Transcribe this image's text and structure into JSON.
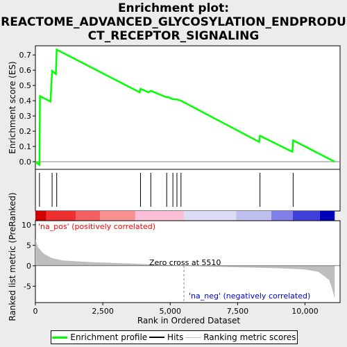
{
  "title_lines": [
    "Enrichment plot:",
    "REACTOME_ADVANCED_GLYCOSYLATION_ENDPRODU",
    "CT_RECEPTOR_SIGNALING"
  ],
  "colors": {
    "es_line": "#00ff00",
    "hit": "#000000",
    "metric_fill": "#bebebe",
    "zero_line": "#808080",
    "pos_label": "#ff0000",
    "neg_label": "#0000cc",
    "heat_red": [
      "#d40000",
      "#f03030",
      "#f46060",
      "#f89090",
      "#fbbfd8"
    ],
    "heat_blue": [
      "#dcdcf4",
      "#c0c0f0",
      "#8080e8",
      "#4040d8",
      "#0000b8"
    ]
  },
  "chart_data": [
    {
      "type": "line",
      "name": "enrichment-profile",
      "ylabel": "Enrichment score (ES)",
      "xlim": [
        0,
        11300
      ],
      "ylim": [
        -0.05,
        0.76
      ],
      "yticks": [
        "0.0",
        "0.1",
        "0.2",
        "0.3",
        "0.4",
        "0.5",
        "0.6",
        "0.7"
      ],
      "ytick_values": [
        0,
        0.1,
        0.2,
        0.3,
        0.4,
        0.5,
        0.6,
        0.7
      ],
      "points": [
        [
          0,
          0
        ],
        [
          150,
          -0.02
        ],
        [
          170,
          0.43
        ],
        [
          560,
          0.395
        ],
        [
          620,
          0.595
        ],
        [
          760,
          0.575
        ],
        [
          790,
          0.735
        ],
        [
          3870,
          0.455
        ],
        [
          3900,
          0.478
        ],
        [
          4200,
          0.455
        ],
        [
          4280,
          0.465
        ],
        [
          4870,
          0.422
        ],
        [
          4900,
          0.425
        ],
        [
          5100,
          0.41
        ],
        [
          5250,
          0.408
        ],
        [
          5400,
          0.4
        ],
        [
          8300,
          0.13
        ],
        [
          8330,
          0.17
        ],
        [
          9530,
          0.065
        ],
        [
          9560,
          0.14
        ],
        [
          11100,
          0.0
        ]
      ],
      "hits": [
        150,
        620,
        790,
        3900,
        4280,
        4870,
        5100,
        5250,
        5400,
        8330,
        9560
      ]
    },
    {
      "type": "area",
      "name": "ranked-list-metric",
      "ylabel": "Ranked list metric (PreRanked)",
      "xlabel": "Rank in Ordered Dataset",
      "xlim": [
        0,
        11300
      ],
      "ylim": [
        -9,
        11
      ],
      "yticks": [
        "-5",
        "0",
        "5",
        "10"
      ],
      "ytick_values": [
        -5,
        0,
        5,
        10
      ],
      "xticks": [
        "0",
        "2,500",
        "5,000",
        "7,500",
        "10,000"
      ],
      "xtick_values": [
        0,
        2500,
        5000,
        7500,
        10000
      ],
      "zero_cross": 5510,
      "zero_cross_label": "Zero cross at 5510",
      "pos_label": "'na_pos' (positively correlated)",
      "neg_label": "'na_neg' (negatively correlated)",
      "points": [
        [
          0,
          6.5
        ],
        [
          100,
          4.5
        ],
        [
          300,
          3.0
        ],
        [
          600,
          1.9
        ],
        [
          1000,
          1.3
        ],
        [
          2000,
          0.9
        ],
        [
          3500,
          0.55
        ],
        [
          5510,
          0
        ],
        [
          7000,
          -0.3
        ],
        [
          9000,
          -0.6
        ],
        [
          10000,
          -0.9
        ],
        [
          10500,
          -1.5
        ],
        [
          10700,
          -2.5
        ],
        [
          10900,
          -3.5
        ],
        [
          11000,
          -5.5
        ],
        [
          11100,
          -8.0
        ]
      ]
    }
  ],
  "legend": {
    "items": [
      {
        "label": "Enrichment profile"
      },
      {
        "label": "Hits"
      },
      {
        "label": "Ranking metric scores"
      }
    ]
  }
}
